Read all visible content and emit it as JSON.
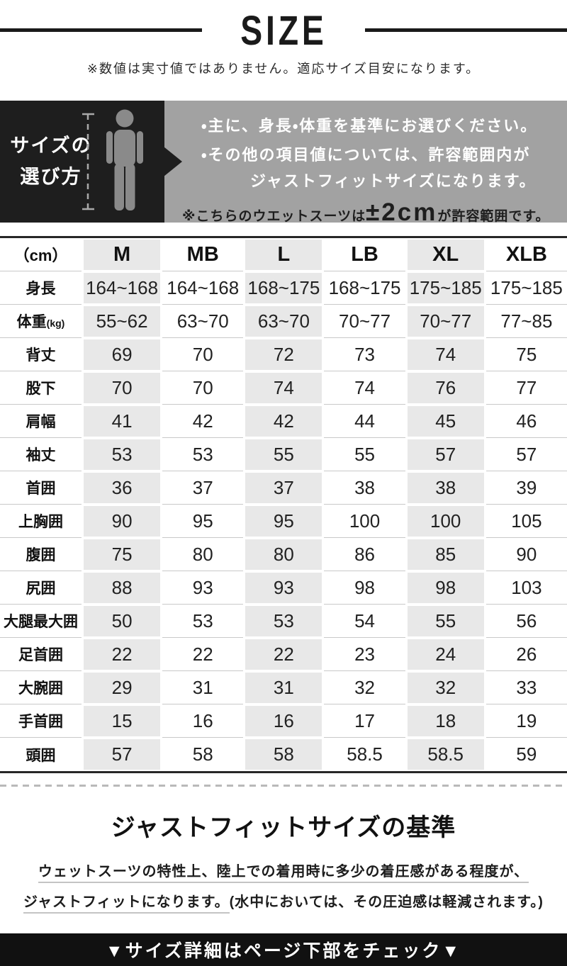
{
  "header": {
    "title": "SIZE",
    "note": "※数値は実寸値ではありません。適応サイズ目安になります。"
  },
  "guide": {
    "label_line1": "サイズの",
    "label_line2": "選び方",
    "bullet1": "・主に、身長・体重を基準にお選びください。",
    "bullet2_line1": "・その他の項目値については、許容範囲内が",
    "bullet2_line2": "ジャストフィットサイズになります。",
    "note_prefix": "※こちらのウエットスーツは",
    "note_em": "±2cm",
    "note_underlined_rest": "が許容範囲",
    "note_suffix": "です。"
  },
  "size_table": {
    "unit_header": "（cm）",
    "columns": [
      "M",
      "MB",
      "L",
      "LB",
      "XL",
      "XLB"
    ],
    "rows": [
      {
        "label": "身長",
        "values": [
          "164~168",
          "164~168",
          "168~175",
          "168~175",
          "175~185",
          "175~185"
        ]
      },
      {
        "label": "体重",
        "label_suffix": "(kg)",
        "values": [
          "55~62",
          "63~70",
          "63~70",
          "70~77",
          "70~77",
          "77~85"
        ]
      },
      {
        "label": "背丈",
        "values": [
          "69",
          "70",
          "72",
          "73",
          "74",
          "75"
        ]
      },
      {
        "label": "股下",
        "values": [
          "70",
          "70",
          "74",
          "74",
          "76",
          "77"
        ]
      },
      {
        "label": "肩幅",
        "values": [
          "41",
          "42",
          "42",
          "44",
          "45",
          "46"
        ]
      },
      {
        "label": "袖丈",
        "values": [
          "53",
          "53",
          "55",
          "55",
          "57",
          "57"
        ]
      },
      {
        "label": "首囲",
        "values": [
          "36",
          "37",
          "37",
          "38",
          "38",
          "39"
        ]
      },
      {
        "label": "上胸囲",
        "values": [
          "90",
          "95",
          "95",
          "100",
          "100",
          "105"
        ]
      },
      {
        "label": "腹囲",
        "values": [
          "75",
          "80",
          "80",
          "86",
          "85",
          "90"
        ]
      },
      {
        "label": "尻囲",
        "values": [
          "88",
          "93",
          "93",
          "98",
          "98",
          "103"
        ]
      },
      {
        "label": "大腿最大囲",
        "values": [
          "50",
          "53",
          "53",
          "54",
          "55",
          "56"
        ]
      },
      {
        "label": "足首囲",
        "values": [
          "22",
          "22",
          "22",
          "23",
          "24",
          "26"
        ]
      },
      {
        "label": "大腕囲",
        "values": [
          "29",
          "31",
          "31",
          "32",
          "32",
          "33"
        ]
      },
      {
        "label": "手首囲",
        "values": [
          "15",
          "16",
          "16",
          "17",
          "18",
          "19"
        ]
      },
      {
        "label": "頭囲",
        "values": [
          "57",
          "58",
          "58",
          "58.5",
          "58.5",
          "59"
        ]
      }
    ]
  },
  "fit_standard": {
    "heading": "ジャストフィットサイズの基準",
    "line1": "ウェットスーツの特性上、陸上での着用時に多少の着圧感がある程度が、",
    "line2_underlined": "ジャストフィットになります。",
    "line2_rest": "(水中においては、その圧迫感は軽減されます。)"
  },
  "footer": {
    "text": "▼サイズ詳細はページ下部をチェック▼"
  },
  "colors": {
    "box_black": "#1e1e1e",
    "box_gray": "#a2a2a2",
    "table_shade": "#e8e8e8",
    "footer_black": "#111111"
  }
}
